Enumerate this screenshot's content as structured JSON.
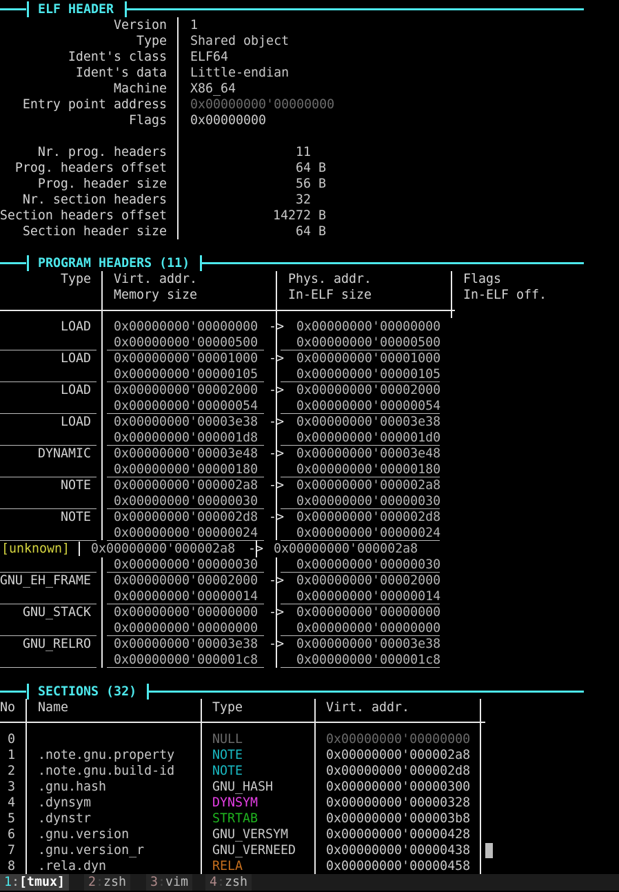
{
  "elf_header": {
    "title": "ELF HEADER",
    "fields": [
      {
        "label": "Version",
        "value": "1"
      },
      {
        "label": "Type",
        "value": "Shared object"
      },
      {
        "label": "Ident's class",
        "value": "ELF64"
      },
      {
        "label": "Ident's data",
        "value": "Little-endian"
      },
      {
        "label": "Machine",
        "value": "X86_64"
      },
      {
        "label": "Entry point address",
        "value": "0x00000000'00000000",
        "dim": true
      },
      {
        "label": "Flags",
        "value": "0x00000000"
      }
    ],
    "counts": [
      {
        "label": "Nr. prog. headers",
        "value": "11",
        "unit": ""
      },
      {
        "label": "Prog. headers offset",
        "value": "64",
        "unit": "B"
      },
      {
        "label": "Prog. header size",
        "value": "56",
        "unit": "B"
      },
      {
        "label": "Nr. section headers",
        "value": "32",
        "unit": ""
      },
      {
        "label": "Section headers offset",
        "value": "14272",
        "unit": "B"
      },
      {
        "label": "Section header size",
        "value": "64",
        "unit": "B"
      }
    ]
  },
  "program_headers": {
    "title": "PROGRAM HEADERS (11)",
    "columns": {
      "type": "Type",
      "virt": "Virt. addr.",
      "mem": "Memory size",
      "phys": "Phys. addr.",
      "elf_size": "In-ELF size",
      "flags": "Flags",
      "elf_off": "In-ELF off."
    },
    "arrow": "->",
    "rows": [
      {
        "type": "LOAD",
        "virt": "0x00000000'00000000",
        "mem": "0x00000000'00000500",
        "phys": "0x00000000'00000000",
        "elf_size": "0x00000000'00000500"
      },
      {
        "type": "LOAD",
        "virt": "0x00000000'00001000",
        "mem": "0x00000000'00000105",
        "phys": "0x00000000'00001000",
        "elf_size": "0x00000000'00000105"
      },
      {
        "type": "LOAD",
        "virt": "0x00000000'00002000",
        "mem": "0x00000000'00000054",
        "phys": "0x00000000'00002000",
        "elf_size": "0x00000000'00000054"
      },
      {
        "type": "LOAD",
        "virt": "0x00000000'00003e38",
        "mem": "0x00000000'000001d8",
        "phys": "0x00000000'00003e38",
        "elf_size": "0x00000000'000001d0"
      },
      {
        "type": "DYNAMIC",
        "virt": "0x00000000'00003e48",
        "mem": "0x00000000'00000180",
        "phys": "0x00000000'00003e48",
        "elf_size": "0x00000000'00000180"
      },
      {
        "type": "NOTE",
        "virt": "0x00000000'000002a8",
        "mem": "0x00000000'00000030",
        "phys": "0x00000000'000002a8",
        "elf_size": "0x00000000'00000030"
      },
      {
        "type": "NOTE",
        "virt": "0x00000000'000002d8",
        "mem": "0x00000000'00000024",
        "phys": "0x00000000'000002d8",
        "elf_size": "0x00000000'00000024"
      },
      {
        "type": "[unknown]",
        "virt": "0x00000000'000002a8",
        "mem": "0x00000000'00000030",
        "phys": "0x00000000'000002a8",
        "elf_size": "0x00000000'00000030",
        "unknown": true
      },
      {
        "type": "GNU_EH_FRAME",
        "virt": "0x00000000'00002000",
        "mem": "0x00000000'00000014",
        "phys": "0x00000000'00002000",
        "elf_size": "0x00000000'00000014"
      },
      {
        "type": "GNU_STACK",
        "virt": "0x00000000'00000000",
        "mem": "0x00000000'00000000",
        "phys": "0x00000000'00000000",
        "elf_size": "0x00000000'00000000"
      },
      {
        "type": "GNU_RELRO",
        "virt": "0x00000000'00003e38",
        "mem": "0x00000000'000001c8",
        "phys": "0x00000000'00003e38",
        "elf_size": "0x00000000'000001c8"
      }
    ]
  },
  "sections": {
    "title": "SECTIONS (32)",
    "columns": {
      "no": "No",
      "name": "Name",
      "type": "Type",
      "virt": "Virt. addr."
    },
    "rows": [
      {
        "no": "0",
        "name": "",
        "type": "NULL",
        "virt": "0x00000000'00000000",
        "color": "#6a6a6a",
        "dim": true
      },
      {
        "no": "1",
        "name": ".note.gnu.property",
        "type": "NOTE",
        "virt": "0x00000000'000002a8",
        "color": "#19b9c2"
      },
      {
        "no": "2",
        "name": ".note.gnu.build-id",
        "type": "NOTE",
        "virt": "0x00000000'000002d8",
        "color": "#19b9c2"
      },
      {
        "no": "3",
        "name": ".gnu.hash",
        "type": "GNU_HASH",
        "virt": "0x00000000'00000300",
        "color": "#c9c9c9"
      },
      {
        "no": "4",
        "name": ".dynsym",
        "type": "DYNSYM",
        "virt": "0x00000000'00000328",
        "color": "#e43fe4"
      },
      {
        "no": "5",
        "name": ".dynstr",
        "type": "STRTAB",
        "virt": "0x00000000'000003b8",
        "color": "#1fb41f"
      },
      {
        "no": "6",
        "name": ".gnu.version",
        "type": "GNU_VERSYM",
        "virt": "0x00000000'00000428",
        "color": "#c9c9c9"
      },
      {
        "no": "7",
        "name": ".gnu.version_r",
        "type": "GNU_VERNEED",
        "virt": "0x00000000'00000438",
        "color": "#c9c9c9"
      },
      {
        "no": "8",
        "name": ".rela.dyn",
        "type": "RELA",
        "virt": "0x00000000'00000458",
        "color": "#c8701e"
      }
    ]
  },
  "tmux": {
    "windows": [
      {
        "index": "1",
        "sep": ":",
        "name": "[tmux]",
        "active": true
      },
      {
        "index": "2",
        "sep": ":",
        "name": "zsh"
      },
      {
        "index": "3",
        "sep": ":",
        "name": "vim"
      },
      {
        "index": "4",
        "sep": ":",
        "name": "zsh"
      }
    ]
  },
  "colors": {
    "accent": "#4de8ec",
    "unknown": "#d6d640",
    "index": "#b08a8a"
  }
}
